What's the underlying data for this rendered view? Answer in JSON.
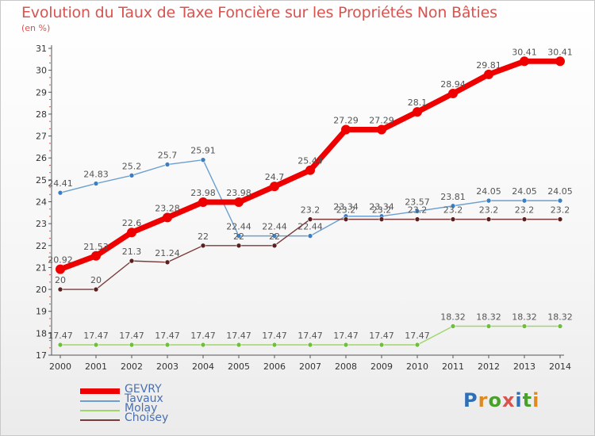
{
  "title": "Evolution du Taux de Taxe Foncière sur les Propriétés Non Bâties",
  "unit_label": "(en %)",
  "logo": {
    "letters": [
      "P",
      "r",
      "o",
      "x",
      "i",
      "t",
      "i"
    ],
    "colors": [
      "#2f6fb5",
      "#e08a1e",
      "#4aa02c",
      "#d9534f",
      "#2f6fb5",
      "#4aa02c",
      "#e08a1e"
    ]
  },
  "chart_data": {
    "type": "line",
    "title": "Evolution du Taux de Taxe Foncière sur les Propriétés Non Bâties",
    "ylabel": "(en %)",
    "xlabel": "",
    "ylim": [
      17,
      31
    ],
    "yticks": [
      "17",
      "18",
      "19",
      "20",
      "21",
      "22",
      "23",
      "24",
      "25",
      "26",
      "27",
      "28",
      "29",
      "30",
      "31"
    ],
    "categories": [
      "2000",
      "2001",
      "2002",
      "2003",
      "2004",
      "2005",
      "2006",
      "2007",
      "2008",
      "2009",
      "2010",
      "2011",
      "2012",
      "2013",
      "2014"
    ],
    "grid": false,
    "legend_position": "bottom-left",
    "series": [
      {
        "name": "Tavaux",
        "color": "#6b9fcf",
        "point_color": "#3a7fc4",
        "values": [
          24.41,
          24.83,
          25.2,
          25.7,
          25.91,
          22.44,
          22.44,
          22.44,
          23.34,
          23.34,
          23.57,
          23.81,
          24.05,
          24.05,
          24.05
        ],
        "labels": [
          "24.41",
          "24.83",
          "25.2",
          "25.7",
          "25.91",
          "22.44",
          "22.44",
          "22.44",
          "23.34",
          "23.34",
          "23.57",
          "23.81",
          "24.05",
          "24.05",
          "24.05"
        ]
      },
      {
        "name": "Choisey",
        "color": "#7b3a3a",
        "point_color": "#5a1f1f",
        "values": [
          20,
          20,
          21.3,
          21.24,
          22,
          22,
          22,
          23.2,
          23.2,
          23.2,
          23.2,
          23.2,
          23.2,
          23.2,
          23.2
        ],
        "labels": [
          "20",
          "20",
          "21.3",
          "21.24",
          "22",
          "22",
          "22",
          "23.2",
          "23.2",
          "23.2",
          "23.2",
          "23.2",
          "23.2",
          "23.2",
          "23.2"
        ]
      },
      {
        "name": "Molay",
        "color": "#9fd66a",
        "point_color": "#6fbf3a",
        "values": [
          17.47,
          17.47,
          17.47,
          17.47,
          17.47,
          17.47,
          17.47,
          17.47,
          17.47,
          17.47,
          17.47,
          18.32,
          18.32,
          18.32,
          18.32
        ],
        "labels": [
          "17.47",
          "17.47",
          "17.47",
          "17.47",
          "17.47",
          "17.47",
          "17.47",
          "17.47",
          "17.47",
          "17.47",
          "17.47",
          "18.32",
          "18.32",
          "18.32",
          "18.32"
        ]
      },
      {
        "name": "GEVRY",
        "color": "#ee0000",
        "point_color": "#ee0000",
        "values": [
          20.92,
          21.53,
          22.6,
          23.28,
          23.98,
          23.98,
          24.7,
          25.44,
          27.29,
          27.29,
          28.1,
          28.94,
          29.81,
          30.41,
          30.41
        ],
        "labels": [
          "20.92",
          "21.53",
          "22.6",
          "23.28",
          "23.98",
          "23.98",
          "24.7",
          "25.44",
          "27.29",
          "27.29",
          "28.1",
          "28.94",
          "29.81",
          "30.41",
          "30.41"
        ]
      }
    ],
    "legend_order": [
      "GEVRY",
      "Tavaux",
      "Molay",
      "Choisey"
    ]
  }
}
